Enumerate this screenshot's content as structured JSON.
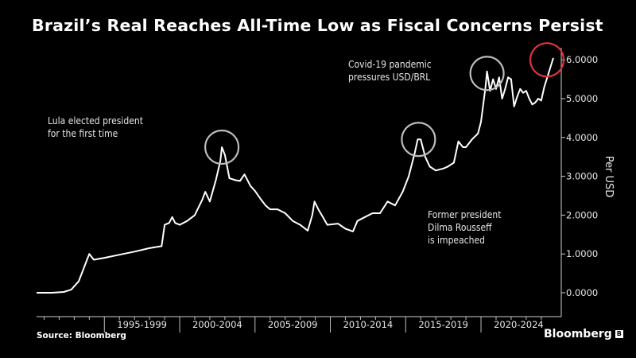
{
  "chart_data": {
    "type": "line",
    "title": "Brazil’s Real Reaches All-Time Low as Fiscal Concerns Persist",
    "ylabel": "Per USD",
    "ylim": [
      0,
      6.5
    ],
    "xlim": [
      1990.5,
      2024.8
    ],
    "y_ticks": [
      "0.0000",
      "1.0000",
      "2.0000",
      "3.0000",
      "4.0000",
      "5.0000",
      "6.0000"
    ],
    "x_tick_labels": [
      "1995-1999",
      "2000-2004",
      "2005-2009",
      "2010-2014",
      "2015-2019",
      "2020-2024"
    ],
    "series": [
      {
        "values": [
          [
            1990.5,
            0.0
          ],
          [
            1991.5,
            0.0
          ],
          [
            1992.3,
            0.02
          ],
          [
            1992.8,
            0.08
          ],
          [
            1993.3,
            0.3
          ],
          [
            1993.8,
            0.8
          ],
          [
            1994.0,
            1.0
          ],
          [
            1994.3,
            0.85
          ],
          [
            1995.0,
            0.9
          ],
          [
            1996.0,
            0.98
          ],
          [
            1997.0,
            1.06
          ],
          [
            1998.0,
            1.15
          ],
          [
            1998.8,
            1.2
          ],
          [
            1999.0,
            1.75
          ],
          [
            1999.3,
            1.8
          ],
          [
            1999.5,
            1.95
          ],
          [
            1999.7,
            1.8
          ],
          [
            2000.0,
            1.75
          ],
          [
            2000.5,
            1.85
          ],
          [
            2001.0,
            2.0
          ],
          [
            2001.5,
            2.4
          ],
          [
            2001.7,
            2.6
          ],
          [
            2002.0,
            2.35
          ],
          [
            2002.4,
            2.9
          ],
          [
            2002.7,
            3.4
          ],
          [
            2002.8,
            3.75
          ],
          [
            2003.0,
            3.55
          ],
          [
            2003.3,
            2.95
          ],
          [
            2003.7,
            2.9
          ],
          [
            2004.0,
            2.88
          ],
          [
            2004.3,
            3.05
          ],
          [
            2004.7,
            2.75
          ],
          [
            2005.0,
            2.62
          ],
          [
            2005.4,
            2.4
          ],
          [
            2005.7,
            2.25
          ],
          [
            2006.0,
            2.15
          ],
          [
            2006.5,
            2.15
          ],
          [
            2007.0,
            2.05
          ],
          [
            2007.5,
            1.85
          ],
          [
            2008.0,
            1.75
          ],
          [
            2008.5,
            1.6
          ],
          [
            2008.8,
            2.0
          ],
          [
            2008.95,
            2.35
          ],
          [
            2009.2,
            2.15
          ],
          [
            2009.5,
            1.95
          ],
          [
            2009.8,
            1.75
          ],
          [
            2010.5,
            1.78
          ],
          [
            2011.0,
            1.65
          ],
          [
            2011.5,
            1.58
          ],
          [
            2011.8,
            1.85
          ],
          [
            2012.3,
            1.95
          ],
          [
            2012.8,
            2.05
          ],
          [
            2013.3,
            2.05
          ],
          [
            2013.8,
            2.35
          ],
          [
            2014.3,
            2.25
          ],
          [
            2014.8,
            2.6
          ],
          [
            2015.2,
            3.0
          ],
          [
            2015.6,
            3.6
          ],
          [
            2015.8,
            3.95
          ],
          [
            2016.0,
            3.95
          ],
          [
            2016.3,
            3.5
          ],
          [
            2016.6,
            3.25
          ],
          [
            2017.0,
            3.15
          ],
          [
            2017.5,
            3.2
          ],
          [
            2017.8,
            3.25
          ],
          [
            2018.2,
            3.35
          ],
          [
            2018.5,
            3.9
          ],
          [
            2018.8,
            3.75
          ],
          [
            2019.0,
            3.75
          ],
          [
            2019.4,
            3.95
          ],
          [
            2019.8,
            4.1
          ],
          [
            2020.0,
            4.4
          ],
          [
            2020.3,
            5.3
          ],
          [
            2020.4,
            5.7
          ],
          [
            2020.6,
            5.2
          ],
          [
            2020.8,
            5.5
          ],
          [
            2021.0,
            5.25
          ],
          [
            2021.2,
            5.55
          ],
          [
            2021.4,
            5.0
          ],
          [
            2021.6,
            5.25
          ],
          [
            2021.8,
            5.55
          ],
          [
            2022.0,
            5.5
          ],
          [
            2022.2,
            4.8
          ],
          [
            2022.4,
            5.05
          ],
          [
            2022.6,
            5.25
          ],
          [
            2022.8,
            5.15
          ],
          [
            2023.0,
            5.2
          ],
          [
            2023.2,
            5.0
          ],
          [
            2023.4,
            4.85
          ],
          [
            2023.6,
            4.9
          ],
          [
            2023.8,
            5.0
          ],
          [
            2024.0,
            4.95
          ],
          [
            2024.2,
            5.3
          ],
          [
            2024.4,
            5.55
          ],
          [
            2024.6,
            5.8
          ],
          [
            2024.8,
            6.05
          ]
        ]
      }
    ],
    "highlights": [
      {
        "x": 2002.8,
        "y": 3.75,
        "color": "#bdbdbd"
      },
      {
        "x": 2015.85,
        "y": 3.95,
        "color": "#bdbdbd"
      },
      {
        "x": 2020.4,
        "y": 5.65,
        "color": "#bdbdbd"
      },
      {
        "x": 2024.8,
        "y": 6.0,
        "color": "#e0343b"
      }
    ],
    "annotations": [
      {
        "lines": [
          "Lula elected president",
          "for the first time"
        ]
      },
      {
        "lines": [
          "Covid-19 pandemic",
          "pressures USD/BRL"
        ]
      },
      {
        "lines": [
          "Former president",
          "Dilma Rousseff",
          "is impeached"
        ]
      }
    ],
    "grid": false
  },
  "footer": {
    "source": "Source: Bloomberg",
    "brand": "Bloomberg",
    "brand_mark": "B"
  },
  "colors": {
    "background": "#000000",
    "line": "#ffffff",
    "highlight_gray": "#bdbdbd",
    "highlight_red": "#e0343b"
  }
}
